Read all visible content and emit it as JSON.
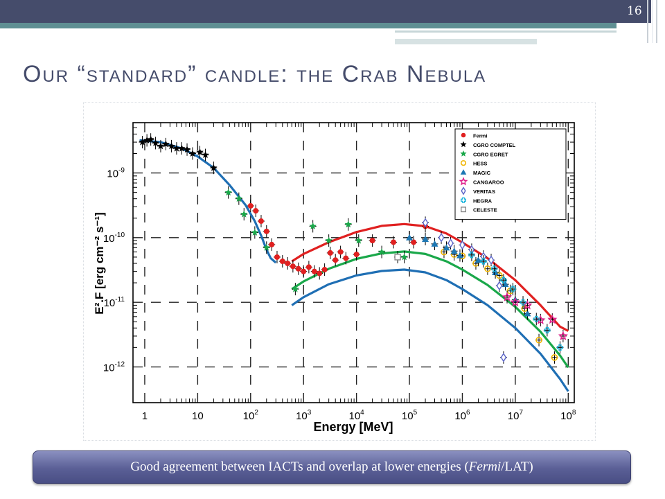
{
  "slide": {
    "number": "16",
    "title": "Our “standard” candle: the Crab Nebula",
    "caption_pre": "Good agreement between IACTs and overlap at lower energies (",
    "caption_em": "Fermi",
    "caption_post": "/LAT)"
  },
  "colors": {
    "header_bar": "#454c6b",
    "accent_teal": "#5f8f93",
    "caption_bg": "#5a5f96",
    "title_text": "#454c6b"
  },
  "chart_data": {
    "type": "scatter",
    "xlabel": "Energy [MeV]",
    "ylabel": "E².F [erg cm⁻² s⁻¹]",
    "x_scale": "log",
    "y_scale": "log",
    "xlim": [
      0.6,
      130000000.0
    ],
    "ylim": [
      2.8e-13,
      6e-09
    ],
    "grid": true,
    "x_ticks": [
      {
        "v": 1,
        "label": "1"
      },
      {
        "v": 10,
        "label": "10"
      },
      {
        "v": 100,
        "base": "10",
        "exp": "2"
      },
      {
        "v": 1000,
        "base": "10",
        "exp": "3"
      },
      {
        "v": 10000,
        "base": "10",
        "exp": "4"
      },
      {
        "v": 100000,
        "base": "10",
        "exp": "5"
      },
      {
        "v": 1000000,
        "base": "10",
        "exp": "6"
      },
      {
        "v": 10000000,
        "base": "10",
        "exp": "7"
      },
      {
        "v": 100000000,
        "base": "10",
        "exp": "8"
      }
    ],
    "y_ticks": [
      {
        "v": 1e-09,
        "base": "10",
        "exp": "-9"
      },
      {
        "v": 1e-10,
        "base": "10",
        "exp": "-10"
      },
      {
        "v": 1e-11,
        "base": "10",
        "exp": "-11"
      },
      {
        "v": 1e-12,
        "base": "10",
        "exp": "-12"
      }
    ],
    "legend_position": "top-right",
    "legend": [
      {
        "name": "Fermi",
        "marker": "circle",
        "color": "#e02020"
      },
      {
        "name": "CGRO COMPTEL",
        "marker": "star",
        "color": "#000000"
      },
      {
        "name": "CGRO EGRET",
        "marker": "star",
        "color": "#1aa84a"
      },
      {
        "name": "HESS",
        "marker": "open-circle",
        "color": "#f0b400"
      },
      {
        "name": "MAGIC",
        "marker": "triangle",
        "color": "#1e78b4"
      },
      {
        "name": "CANGAROO",
        "marker": "open-star",
        "color": "#e0208c"
      },
      {
        "name": "VERITAS",
        "marker": "open-diamond",
        "color": "#5a64c8"
      },
      {
        "name": "HEGRA",
        "marker": "open-cross",
        "color": "#18b4dc"
      },
      {
        "name": "CELESTE",
        "marker": "open-square",
        "color": "#888888"
      }
    ],
    "curves": [
      {
        "color": "#1f6fb4",
        "points": [
          [
            0.8,
            3.2e-09
          ],
          [
            2,
            3e-09
          ],
          [
            5,
            2.4e-09
          ],
          [
            10,
            1.8e-09
          ],
          [
            20,
            1.2e-09
          ],
          [
            40,
            6.5e-10
          ],
          [
            80,
            3.2e-10
          ],
          [
            120,
            1.8e-10
          ],
          [
            160,
            1.05e-10
          ],
          [
            200,
            6.5e-11
          ],
          [
            240,
            4.8e-11
          ],
          [
            300,
            4.1e-11
          ]
        ]
      },
      {
        "color": "#1f6fb4",
        "points": [
          [
            600,
            9e-12
          ],
          [
            1000,
            1.2e-11
          ],
          [
            3000,
            1.9e-11
          ],
          [
            10000,
            2.6e-11
          ],
          [
            30000,
            3.05e-11
          ],
          [
            80000,
            3.2e-11
          ],
          [
            200000,
            2.9e-11
          ],
          [
            500000,
            2.2e-11
          ],
          [
            1000000,
            1.6e-11
          ],
          [
            3000000,
            9e-12
          ],
          [
            10000000,
            4e-12
          ],
          [
            30000000,
            1.6e-12
          ],
          [
            70000000,
            6.5e-13
          ],
          [
            100000000,
            4.2e-13
          ]
        ]
      },
      {
        "color": "#1aa84a",
        "points": [
          [
            600,
            1.6e-11
          ],
          [
            1000,
            2.1e-11
          ],
          [
            3000,
            3.3e-11
          ],
          [
            10000,
            4.7e-11
          ],
          [
            30000,
            5.7e-11
          ],
          [
            80000,
            6.1e-11
          ],
          [
            200000,
            5.6e-11
          ],
          [
            500000,
            4.3e-11
          ],
          [
            1000000,
            3.2e-11
          ],
          [
            3000000,
            1.85e-11
          ],
          [
            10000000,
            8.5e-12
          ],
          [
            30000000,
            3.5e-12
          ],
          [
            70000000,
            1.5e-12
          ],
          [
            100000000,
            9.8e-13
          ]
        ]
      },
      {
        "color": "#e02020",
        "points": [
          [
            600,
            4.3e-11
          ],
          [
            1000,
            5.6e-11
          ],
          [
            3000,
            8.5e-11
          ],
          [
            10000,
            1.22e-10
          ],
          [
            30000,
            1.52e-10
          ],
          [
            80000,
            1.62e-10
          ],
          [
            200000,
            1.5e-10
          ],
          [
            500000,
            1.16e-10
          ],
          [
            1000000,
            8.4e-11
          ],
          [
            3000000,
            4.8e-11
          ],
          [
            10000000,
            2.2e-11
          ],
          [
            30000000,
            9e-12
          ],
          [
            70000000,
            4.2e-12
          ],
          [
            100000000,
            3.6e-12
          ]
        ]
      }
    ],
    "series": [
      {
        "name": "Fermi",
        "points": [
          [
            100,
            3.1e-10
          ],
          [
            125,
            2.6e-10
          ],
          [
            158,
            1.8e-10
          ],
          [
            200,
            1.25e-10
          ],
          [
            250,
            7.8e-11
          ],
          [
            316,
            5e-11
          ],
          [
            400,
            4.3e-11
          ],
          [
            500,
            4e-11
          ],
          [
            630,
            3.6e-11
          ],
          [
            800,
            3.3e-11
          ],
          [
            1000,
            3e-11
          ],
          [
            1260,
            3.5e-11
          ],
          [
            1600,
            3e-11
          ],
          [
            2000,
            2.8e-11
          ],
          [
            2500,
            3.2e-11
          ],
          [
            3200,
            5.8e-11
          ],
          [
            4000,
            4.5e-11
          ],
          [
            5000,
            6e-11
          ],
          [
            6300,
            4.8e-11
          ],
          [
            10000,
            5.5e-11
          ],
          [
            20000,
            9e-11
          ],
          [
            50000,
            8.5e-11
          ],
          [
            120000,
            8.5e-11
          ],
          [
            200000,
            1.5e-10
          ]
        ]
      },
      {
        "name": "CGRO COMPTEL",
        "points": [
          [
            0.9,
            3e-09
          ],
          [
            1.1,
            3.2e-09
          ],
          [
            1.3,
            3.3e-09
          ],
          [
            1.6,
            2.9e-09
          ],
          [
            2.0,
            2.6e-09
          ],
          [
            2.5,
            2.8e-09
          ],
          [
            3.2,
            2.6e-09
          ],
          [
            4,
            2.4e-09
          ],
          [
            5,
            2.4e-09
          ],
          [
            6.3,
            2.3e-09
          ],
          [
            8,
            2e-09
          ],
          [
            11,
            2.1e-09
          ],
          [
            14,
            1.9e-09
          ],
          [
            20,
            1.2e-09
          ]
        ]
      },
      {
        "name": "CGRO EGRET",
        "points": [
          [
            38,
            5e-10
          ],
          [
            60,
            4e-10
          ],
          [
            75,
            2.3e-10
          ],
          [
            120,
            1.2e-10
          ],
          [
            200,
            7e-11
          ],
          [
            700,
            1.6e-11
          ],
          [
            1500,
            1.5e-10
          ],
          [
            3000,
            9e-11
          ],
          [
            7000,
            1.6e-10
          ],
          [
            11000,
            9e-11
          ],
          [
            30000,
            6e-11
          ],
          [
            80000,
            5e-11
          ]
        ]
      },
      {
        "name": "HESS",
        "points": [
          [
            450000,
            6e-11
          ],
          [
            700000,
            5.5e-11
          ],
          [
            1000000,
            5.2e-11
          ],
          [
            1800000,
            4e-11
          ],
          [
            3000000,
            3.3e-11
          ],
          [
            5000000,
            2.6e-11
          ],
          [
            8000000,
            1.5e-11
          ],
          [
            15000000,
            8e-12
          ],
          [
            28000000,
            2.6e-12
          ],
          [
            55000000,
            1.4e-12
          ]
        ]
      },
      {
        "name": "MAGIC",
        "points": [
          [
            100000,
            1e-10
          ],
          [
            200000,
            9.5e-11
          ],
          [
            300000,
            8e-11
          ],
          [
            500000,
            7e-11
          ],
          [
            700000,
            6.2e-11
          ],
          [
            900000,
            5.3e-11
          ],
          [
            2000000,
            4.5e-11
          ],
          [
            4200000,
            2.9e-11
          ],
          [
            6500000,
            1.9e-11
          ],
          [
            10000000,
            1.1e-11
          ],
          [
            17000000,
            6.7e-12
          ]
        ]
      },
      {
        "name": "CANGAROO",
        "points": [
          [
            7000000,
            1.2e-11
          ],
          [
            10000000,
            1e-11
          ],
          [
            17000000,
            9e-12
          ],
          [
            30000000,
            5.3e-12
          ],
          [
            50000000,
            5.4e-12
          ],
          [
            80000000,
            3e-12
          ]
        ]
      },
      {
        "name": "VERITAS",
        "points": [
          [
            200000,
            1.7e-10
          ],
          [
            400000,
            1e-10
          ],
          [
            600000,
            8.2e-11
          ],
          [
            1000000,
            7.7e-11
          ],
          [
            1500000,
            6.5e-11
          ],
          [
            2500000,
            5.1e-11
          ],
          [
            3500000,
            4.5e-11
          ],
          [
            5000000,
            1.8e-11
          ],
          [
            6000000,
            1.4e-12
          ]
        ]
      },
      {
        "name": "HEGRA",
        "points": [
          [
            1500000,
            5.4e-11
          ],
          [
            2500000,
            4.3e-11
          ],
          [
            4000000,
            3.3e-11
          ],
          [
            6000000,
            2.2e-11
          ],
          [
            9000000,
            1.6e-11
          ],
          [
            14000000,
            1e-11
          ],
          [
            25000000,
            5.5e-12
          ],
          [
            40000000,
            3.7e-12
          ],
          [
            70000000,
            2e-12
          ]
        ]
      },
      {
        "name": "CELESTE",
        "points": [
          [
            60000,
            5e-11
          ]
        ]
      }
    ]
  }
}
